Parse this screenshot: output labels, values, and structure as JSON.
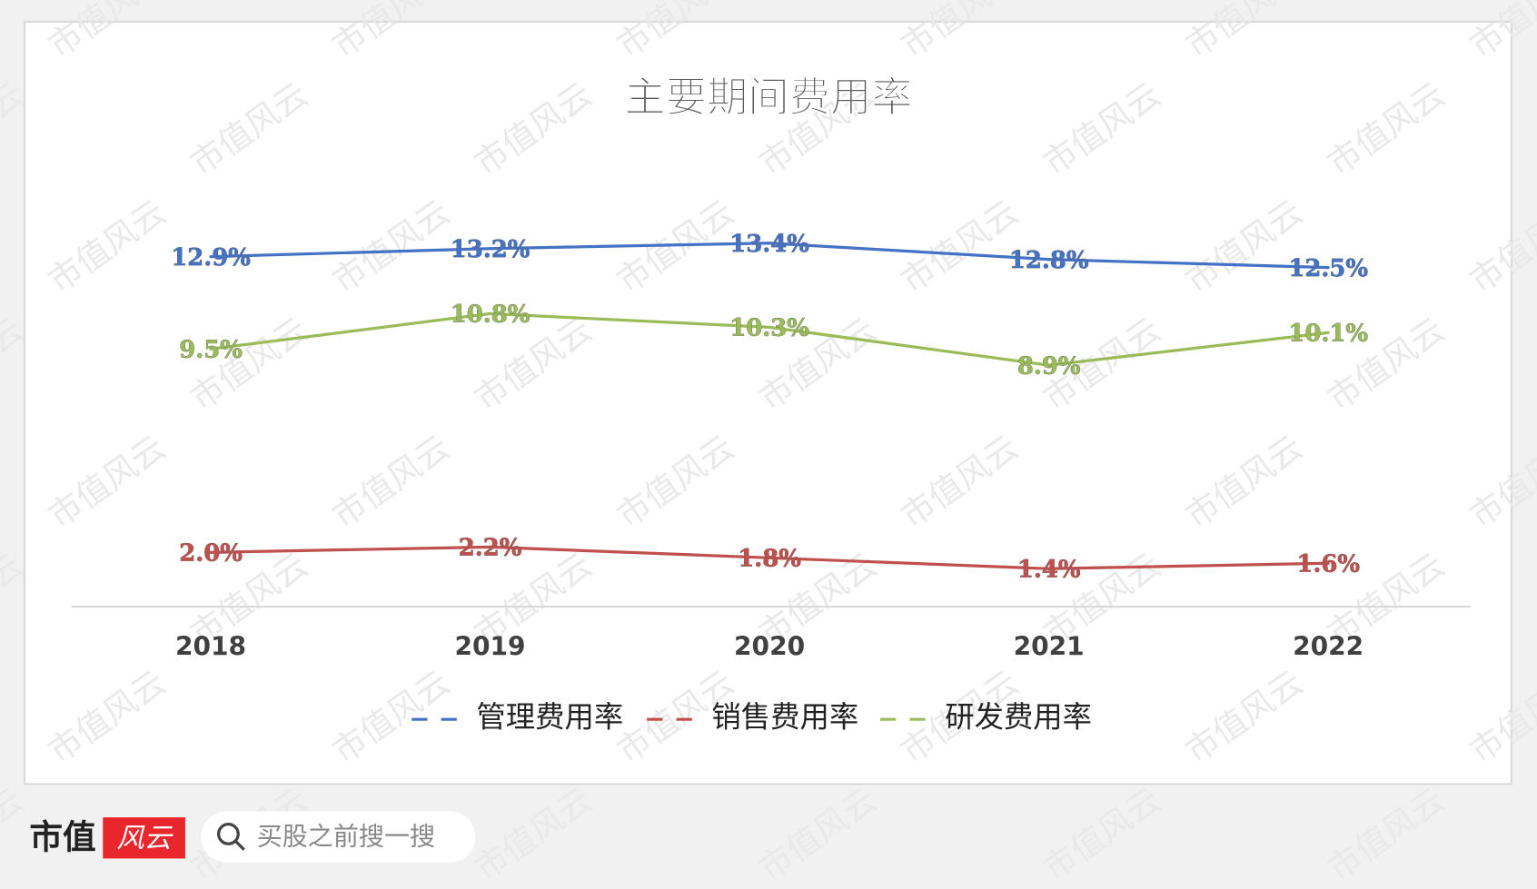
{
  "chart_data": {
    "type": "line",
    "title": "主要期间费用率",
    "categories": [
      "2018",
      "2019",
      "2020",
      "2021",
      "2022"
    ],
    "series": [
      {
        "name": "管理费用率",
        "color": "#4472c4",
        "values": [
          12.9,
          13.2,
          13.4,
          12.8,
          12.5
        ],
        "value_labels": [
          "12.9%",
          "13.2%",
          "13.4%",
          "12.8%",
          "12.5%"
        ]
      },
      {
        "name": "销售费用率",
        "color": "#c0504d",
        "values": [
          2.0,
          2.2,
          1.8,
          1.4,
          1.6
        ],
        "value_labels": [
          "2.0%",
          "2.2%",
          "1.8%",
          "1.4%",
          "1.6%"
        ]
      },
      {
        "name": "研发费用率",
        "color": "#9bbb59",
        "values": [
          9.5,
          10.8,
          10.3,
          8.9,
          10.1
        ],
        "value_labels": [
          "9.5%",
          "10.8%",
          "10.3%",
          "8.9%",
          "10.1%"
        ]
      }
    ],
    "legend": "bottom"
  },
  "footer": {
    "brand": "市值",
    "logo": "风云",
    "search_placeholder": "买股之前搜一搜"
  },
  "watermark": "市值风云"
}
